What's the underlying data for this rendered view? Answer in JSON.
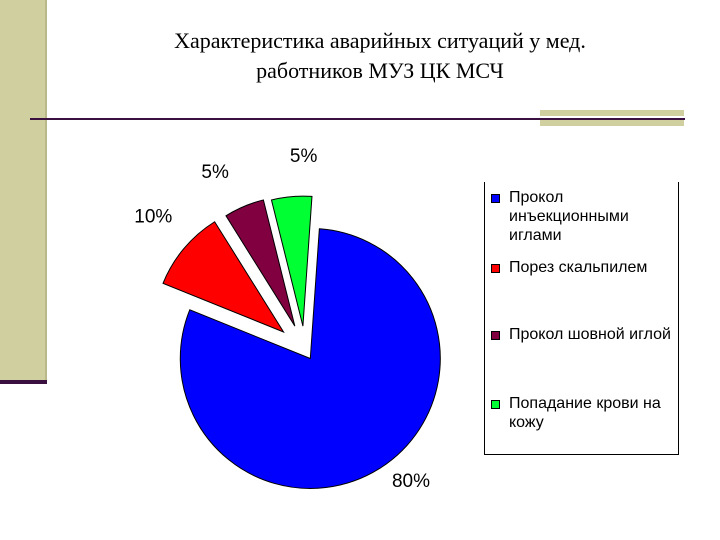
{
  "slide": {
    "title_line1": "Характеристика аварийных ситуаций у мед.",
    "title_line2": "работников МУЗ ЦК МСЧ"
  },
  "colors": {
    "band": "#cfcf9f",
    "rule": "#3a1040"
  },
  "chart_data": {
    "type": "pie",
    "title": "",
    "exploded": true,
    "legend_position": "right",
    "slices": [
      {
        "label": "Прокол инъекционными иглами",
        "value": 80,
        "display": "80%",
        "color": "#0000ff"
      },
      {
        "label": "Порез скальпилем",
        "value": 10,
        "display": "10%",
        "color": "#ff0000"
      },
      {
        "label": "Прокол шовной иглой",
        "value": 5,
        "display": "5%",
        "color": "#800040"
      },
      {
        "label": "Попадание крови на кожу",
        "value": 5,
        "display": "5%",
        "color": "#00ff33"
      }
    ]
  }
}
